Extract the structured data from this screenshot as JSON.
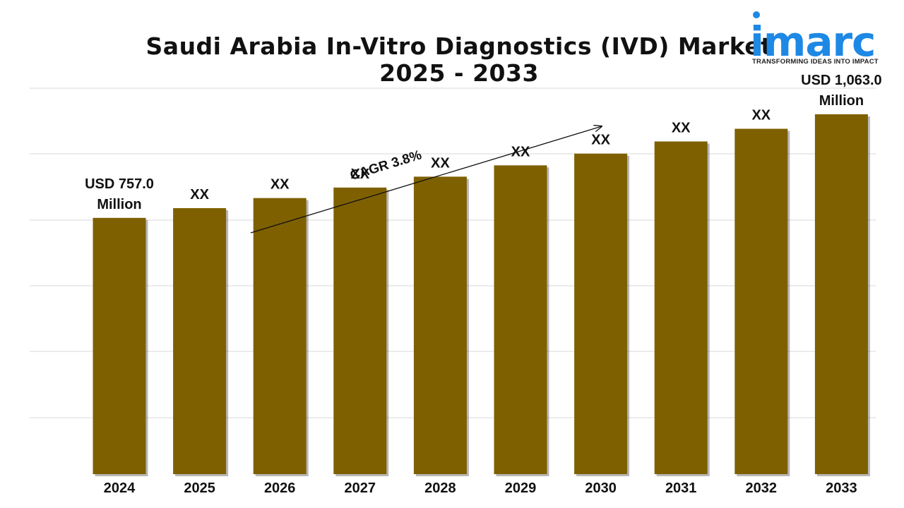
{
  "title_line1": "Saudi Arabia In-Vitro Diagnostics (IVD) Market",
  "title_line2": "2025 - 2033",
  "logo": {
    "word": "imarc",
    "tagline": "TRANSFORMING IDEAS INTO IMPACT",
    "color": "#1e88e5"
  },
  "colors": {
    "bar": "#7f6000",
    "grid": "#d9d9d9",
    "text": "#111111"
  },
  "chart_data": {
    "type": "bar",
    "title": "Saudi Arabia In-Vitro Diagnostics (IVD) Market 2025 - 2033",
    "categories": [
      "2024",
      "2025",
      "2026",
      "2027",
      "2028",
      "2029",
      "2030",
      "2031",
      "2032",
      "2033"
    ],
    "values": [
      757.0,
      785.8,
      815.6,
      846.6,
      878.8,
      912.2,
      946.9,
      982.8,
      1020.2,
      1063.0
    ],
    "data_labels": [
      "USD 757.0\nMillion",
      "XX",
      "XX",
      "XX",
      "XX",
      "XX",
      "XX",
      "XX",
      "XX",
      "USD 1,063.0\nMillion"
    ],
    "ylim": [
      0,
      1063.0
    ],
    "grid": true,
    "annotation": "CAGR 3.8%"
  }
}
